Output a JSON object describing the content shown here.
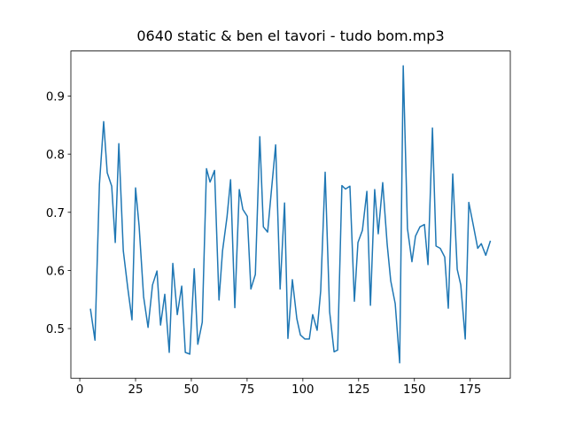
{
  "chart_data": {
    "type": "line",
    "title": "0640 static & ben el tavori - tudo bom.mp3",
    "x": [
      4.8,
      6.8,
      8.8,
      10.7,
      12.3,
      14.3,
      15.9,
      17.5,
      19.5,
      21.5,
      23.4,
      25.0,
      26.6,
      28.6,
      30.6,
      32.6,
      34.6,
      36.2,
      38.1,
      40.1,
      41.7,
      43.7,
      45.7,
      47.3,
      49.3,
      51.3,
      52.9,
      54.9,
      56.8,
      58.4,
      60.4,
      62.4,
      64.0,
      66.0,
      67.6,
      69.5,
      71.5,
      73.1,
      75.1,
      76.7,
      78.7,
      80.7,
      82.3,
      84.2,
      85.8,
      87.8,
      89.8,
      91.8,
      93.3,
      95.3,
      97.3,
      98.9,
      100.9,
      102.9,
      104.4,
      106.4,
      108.0,
      110.0,
      112.0,
      114.0,
      115.6,
      117.5,
      119.1,
      121.1,
      123.1,
      124.7,
      126.7,
      128.7,
      130.3,
      132.2,
      133.8,
      135.8,
      137.8,
      139.4,
      141.4,
      143.4,
      145.0,
      146.9,
      148.9,
      150.5,
      152.5,
      154.5,
      156.1,
      158.1,
      159.7,
      161.6,
      163.6,
      165.2,
      167.2,
      169.2,
      170.8,
      172.8,
      174.4,
      176.4,
      178.4,
      180.0,
      182.0,
      184.0
    ],
    "series": [
      {
        "color": "#1f77b4",
        "values": [
          0.533,
          0.48,
          0.748,
          0.856,
          0.768,
          0.745,
          0.648,
          0.818,
          0.634,
          0.57,
          0.515,
          0.742,
          0.676,
          0.555,
          0.502,
          0.575,
          0.599,
          0.506,
          0.559,
          0.459,
          0.612,
          0.524,
          0.573,
          0.459,
          0.456,
          0.603,
          0.473,
          0.511,
          0.775,
          0.752,
          0.772,
          0.549,
          0.634,
          0.692,
          0.756,
          0.536,
          0.739,
          0.705,
          0.693,
          0.568,
          0.593,
          0.83,
          0.675,
          0.666,
          0.733,
          0.816,
          0.568,
          0.716,
          0.483,
          0.584,
          0.517,
          0.489,
          0.482,
          0.482,
          0.524,
          0.497,
          0.565,
          0.769,
          0.529,
          0.46,
          0.463,
          0.746,
          0.74,
          0.745,
          0.547,
          0.648,
          0.669,
          0.736,
          0.54,
          0.739,
          0.663,
          0.751,
          0.645,
          0.582,
          0.543,
          0.441,
          0.952,
          0.672,
          0.615,
          0.659,
          0.675,
          0.679,
          0.61,
          0.845,
          0.642,
          0.638,
          0.623,
          0.535,
          0.766,
          0.602,
          0.575,
          0.482,
          0.717,
          0.678,
          0.638,
          0.646,
          0.626,
          0.65
        ]
      }
    ],
    "xlim": [
      -4.0,
      193.0
    ],
    "ylim": [
      0.4145,
      0.9775
    ],
    "xticks": [
      0,
      25,
      50,
      75,
      100,
      125,
      150,
      175
    ],
    "yticks": [
      0.5,
      0.6,
      0.7,
      0.8,
      0.9
    ]
  }
}
